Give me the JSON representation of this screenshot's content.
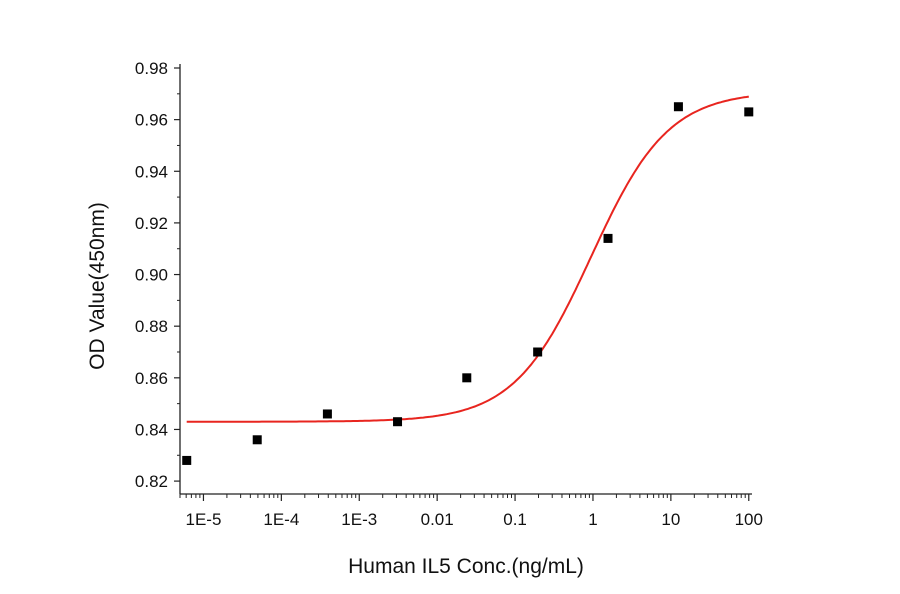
{
  "chart_data": {
    "type": "scatter",
    "xlabel": "Human IL5 Conc.(ng/mL)",
    "ylabel": "OD Value(450nm)",
    "x_scale": "log",
    "xlim": [
      5e-06,
      110
    ],
    "ylim": [
      0.815,
      0.98
    ],
    "x_ticks": [
      {
        "value": 1e-05,
        "label": "1E-5"
      },
      {
        "value": 0.0001,
        "label": "1E-4"
      },
      {
        "value": 0.001,
        "label": "1E-3"
      },
      {
        "value": 0.01,
        "label": "0.01"
      },
      {
        "value": 0.1,
        "label": "0.1"
      },
      {
        "value": 1,
        "label": "1"
      },
      {
        "value": 10,
        "label": "10"
      },
      {
        "value": 100,
        "label": "100"
      }
    ],
    "y_ticks": [
      {
        "value": 0.82,
        "label": "0.82"
      },
      {
        "value": 0.84,
        "label": "0.84"
      },
      {
        "value": 0.86,
        "label": "0.86"
      },
      {
        "value": 0.88,
        "label": "0.88"
      },
      {
        "value": 0.9,
        "label": "0.90"
      },
      {
        "value": 0.92,
        "label": "0.92"
      },
      {
        "value": 0.94,
        "label": "0.94"
      },
      {
        "value": 0.96,
        "label": "0.96"
      },
      {
        "value": 0.98,
        "label": "0.98"
      }
    ],
    "points": [
      {
        "x": 6.1e-06,
        "y": 0.828
      },
      {
        "x": 4.9e-05,
        "y": 0.836
      },
      {
        "x": 0.00039,
        "y": 0.846
      },
      {
        "x": 0.0031,
        "y": 0.843
      },
      {
        "x": 0.024,
        "y": 0.86
      },
      {
        "x": 0.195,
        "y": 0.87
      },
      {
        "x": 1.56,
        "y": 0.914
      },
      {
        "x": 12.5,
        "y": 0.965
      },
      {
        "x": 100,
        "y": 0.963
      }
    ],
    "fit_curve": {
      "model": "4PL",
      "bottom": 0.843,
      "top": 0.971,
      "ec50": 0.95,
      "hill": 0.88
    },
    "colors": {
      "points": "#000000",
      "fit": "#e8251f",
      "axes": "#222222"
    },
    "grid": false,
    "legend": "none"
  }
}
